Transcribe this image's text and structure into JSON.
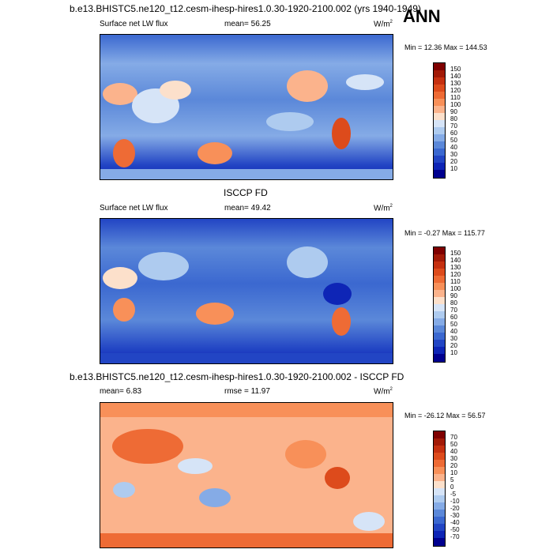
{
  "header": {
    "title": "b.e13.BHISTC5.ne120_t12.cesm-ihesp-hires1.0.30-1920-2100.002 (yrs 1940-1949)",
    "season": "ANN"
  },
  "panels": [
    {
      "title": "",
      "left_label": "Surface net LW flux",
      "center_label": "mean=  56.25",
      "unit": "W/m",
      "unit_sup": "2",
      "minmax": "Min =  12.36 Max = 144.53",
      "colorbar_labels": [
        "150",
        "140",
        "130",
        "120",
        "110",
        "100",
        "90",
        "80",
        "70",
        "60",
        "50",
        "40",
        "30",
        "20",
        "10"
      ],
      "colors": [
        "#7f0000",
        "#a21a07",
        "#c53010",
        "#dd4b1c",
        "#ee6b35",
        "#f89059",
        "#fbb38c",
        "#fce0cb",
        "#d6e4f7",
        "#aecbef",
        "#85abe6",
        "#5b88d9",
        "#3b68d0",
        "#2245c4",
        "#0e25b6",
        "#00008f"
      ]
    },
    {
      "title": "ISCCP FD",
      "left_label": "Surface net LW flux",
      "center_label": "mean=  49.42",
      "unit": "W/m",
      "unit_sup": "2",
      "minmax": "Min =  -0.27 Max = 115.77",
      "colorbar_labels": [
        "150",
        "140",
        "130",
        "120",
        "110",
        "100",
        "90",
        "80",
        "70",
        "60",
        "50",
        "40",
        "30",
        "20",
        "10"
      ],
      "colors": [
        "#7f0000",
        "#a21a07",
        "#c53010",
        "#dd4b1c",
        "#ee6b35",
        "#f89059",
        "#fbb38c",
        "#fce0cb",
        "#d6e4f7",
        "#aecbef",
        "#85abe6",
        "#5b88d9",
        "#3b68d0",
        "#2245c4",
        "#0e25b6",
        "#00008f"
      ]
    },
    {
      "title": "b.e13.BHISTC5.ne120_t12.cesm-ihesp-hires1.0.30-1920-2100.002 - ISCCP FD",
      "left_label": "mean=  6.83",
      "center_label": "rmse =  11.97",
      "unit": "W/m",
      "unit_sup": "2",
      "minmax": "Min = -26.12 Max =  56.57",
      "colorbar_labels": [
        "70",
        "50",
        "40",
        "30",
        "20",
        "10",
        "5",
        "0",
        "-5",
        "-10",
        "-20",
        "-30",
        "-40",
        "-50",
        "-70"
      ],
      "colors": [
        "#7f0000",
        "#a21a07",
        "#c53010",
        "#dd4b1c",
        "#ee6b35",
        "#f89059",
        "#fbb38c",
        "#fce0cb",
        "#d6e4f7",
        "#aecbef",
        "#85abe6",
        "#5b88d9",
        "#3b68d0",
        "#2245c4",
        "#0e25b6",
        "#00008f"
      ]
    }
  ],
  "chart_data": [
    {
      "type": "heatmap",
      "title": "",
      "variable": "Surface net LW flux",
      "mean": 56.25,
      "min": 12.36,
      "max": 144.53,
      "units": "W/m2",
      "levels": [
        10,
        20,
        30,
        40,
        50,
        60,
        70,
        80,
        90,
        100,
        110,
        120,
        130,
        140,
        150
      ]
    },
    {
      "type": "heatmap",
      "title": "ISCCP FD",
      "variable": "Surface net LW flux",
      "mean": 49.42,
      "min": -0.27,
      "max": 115.77,
      "units": "W/m2",
      "levels": [
        10,
        20,
        30,
        40,
        50,
        60,
        70,
        80,
        90,
        100,
        110,
        120,
        130,
        140,
        150
      ]
    },
    {
      "type": "heatmap",
      "title": "b.e13.BHISTC5.ne120_t12.cesm-ihesp-hires1.0.30-1920-2100.002 - ISCCP FD",
      "mean": 6.83,
      "rmse": 11.97,
      "min": -26.12,
      "max": 56.57,
      "units": "W/m2",
      "levels": [
        -70,
        -50,
        -40,
        -30,
        -20,
        -10,
        -5,
        0,
        5,
        10,
        20,
        30,
        40,
        50,
        70
      ]
    }
  ]
}
